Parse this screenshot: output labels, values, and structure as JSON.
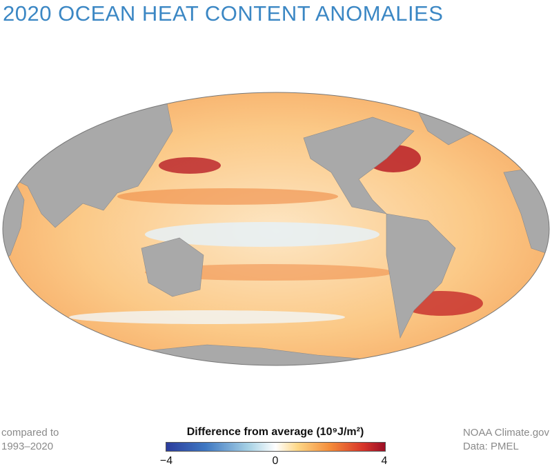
{
  "title": "2020 OCEAN HEAT CONTENT ANOMALIES",
  "baseline_note": [
    "compared to",
    "1993–2020"
  ],
  "credits": [
    "NOAA Climate.gov",
    "Data: PMEL"
  ],
  "legend": {
    "title": "Difference from average (10⁹J/m²)",
    "min": -4,
    "mid": 0,
    "max": 4,
    "tick_labels": [
      "−4",
      "0",
      "4"
    ],
    "colors": [
      "#2b3c9c",
      "#a9d3e6",
      "#ffffff",
      "#f48c3a",
      "#9b0f26"
    ]
  },
  "map": {
    "projection": "Mollweide, Pacific-centered",
    "land_color": "#a9a9a9",
    "ocean_base_color": "#fcd9a4"
  }
}
